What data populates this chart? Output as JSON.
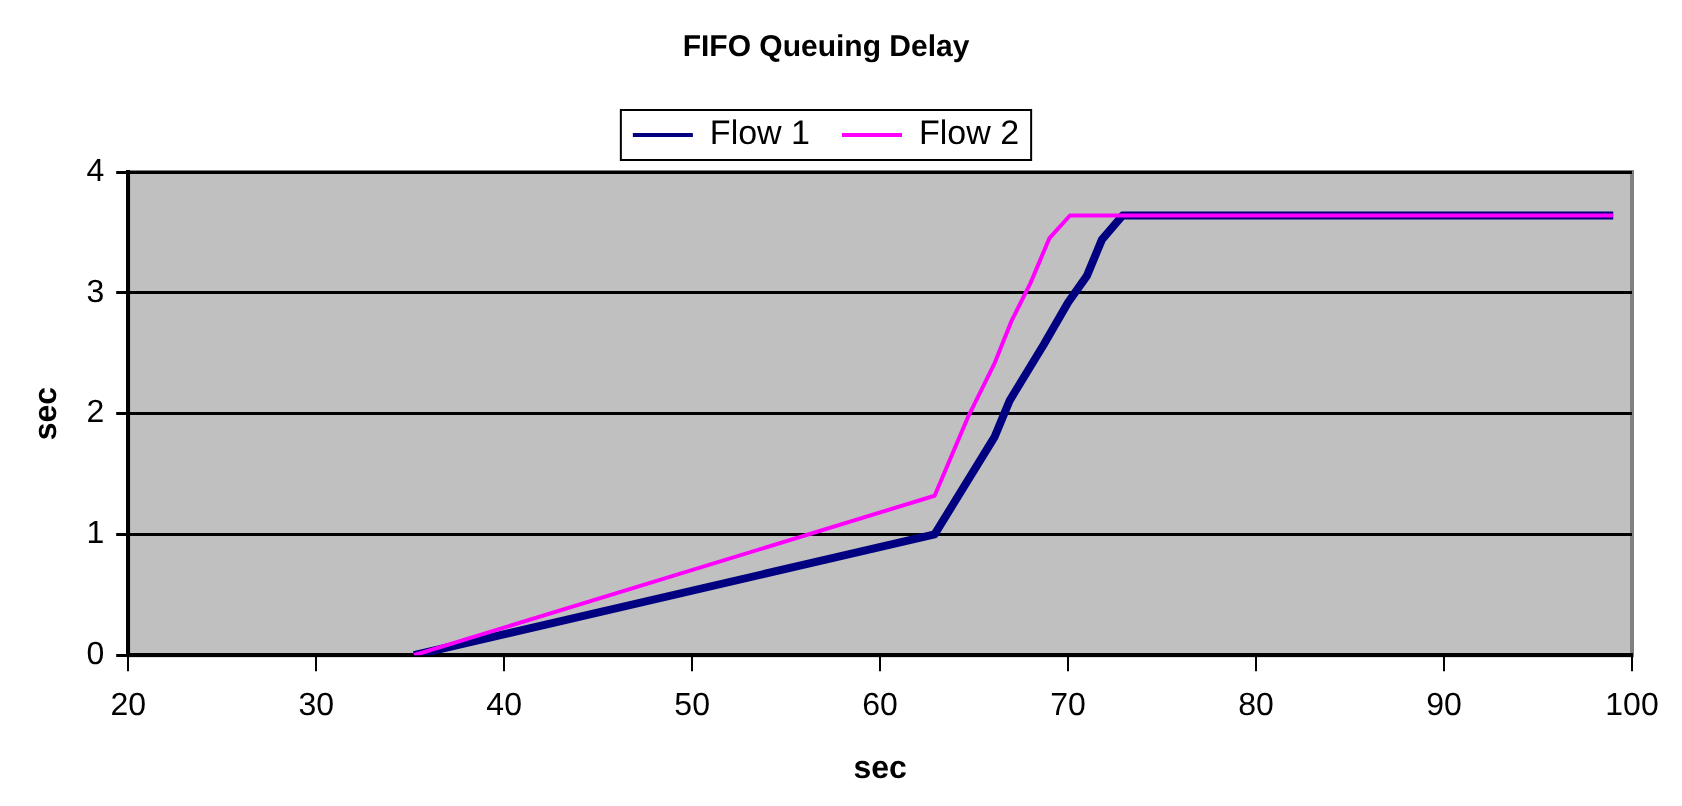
{
  "chart_data": {
    "type": "line",
    "title": "FIFO Queuing Delay",
    "xlabel": "sec",
    "ylabel": "sec",
    "xlim": [
      20,
      100
    ],
    "xticks": [
      20,
      30,
      40,
      50,
      60,
      70,
      80,
      90,
      100
    ],
    "ylim": [
      0,
      4
    ],
    "yticks": [
      0,
      1,
      2,
      3,
      4
    ],
    "grid": "y",
    "legend": "top",
    "marker": "none",
    "line_style": "solid",
    "series": [
      {
        "name": "Flow 1",
        "color": "#000080",
        "x": [
          35.2,
          62.9,
          66.1,
          66.9,
          68.7,
          70,
          71,
          71.8,
          72.9,
          99
        ],
        "values": [
          0,
          1,
          1.81,
          2.11,
          2.57,
          2.92,
          3.14,
          3.44,
          3.64,
          3.64
        ]
      },
      {
        "name": "Flow 2",
        "color": "#ff00ff",
        "x": [
          35.2,
          62.9,
          64.7,
          66.1,
          67,
          68,
          69,
          70.1,
          99
        ],
        "values": [
          0,
          1.32,
          1.98,
          2.42,
          2.77,
          3.08,
          3.45,
          3.64,
          3.64
        ]
      }
    ]
  }
}
